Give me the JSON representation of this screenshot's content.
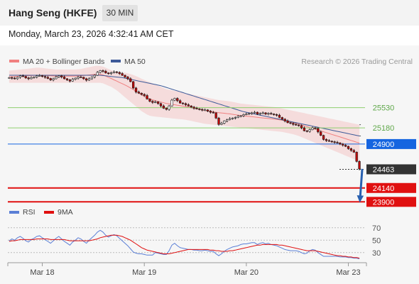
{
  "header": {
    "title": "Hang Seng (HKFE)",
    "timeframe": "30 MIN"
  },
  "datetime": "Monday, March 23, 2026 4:32:41 AM CET",
  "attribution": "Research © 2026 Trading Central",
  "colors": {
    "bollinger": "#f08080",
    "ma50": "#3d5a99",
    "support": "#e01010",
    "pivot": "#1565e0",
    "resistance": "#8fcf6f",
    "current": "#333333",
    "arrow": "#2860b0",
    "rsi": "#5b7fd6",
    "rsi_ma": "#e01010",
    "candle_up": "#ffffff",
    "candle_down": "#c00000"
  },
  "chart_data": [
    {
      "type": "candlestick",
      "legend": [
        "MA 20 + Bollinger Bands",
        "MA 50"
      ],
      "legend_position": "top-left",
      "x_ticks": [
        "Mar 18",
        "Mar 19",
        "Mar 20",
        "Mar 23"
      ],
      "ylim": [
        23830,
        26250
      ],
      "levels": [
        {
          "value": 25530,
          "label": "25530",
          "kind": "resistance"
        },
        {
          "value": 25180,
          "label": "25180",
          "kind": "resistance"
        },
        {
          "value": 24900,
          "label": "24900",
          "kind": "pivot"
        },
        {
          "value": 24463,
          "label": "24463",
          "kind": "current"
        },
        {
          "value": 24140,
          "label": "24140",
          "kind": "support"
        },
        {
          "value": 23900,
          "label": "23900",
          "kind": "support"
        }
      ],
      "close": [
        26050,
        26040,
        26030,
        26055,
        26080,
        26070,
        26045,
        26030,
        26050,
        26060,
        26080,
        26085,
        26070,
        26055,
        26035,
        26010,
        26030,
        26060,
        26080,
        26060,
        26030,
        26010,
        25990,
        26020,
        26040,
        26060,
        26055,
        26030,
        26005,
        26030,
        26060,
        26090,
        26140,
        26170,
        26160,
        26130,
        26120,
        26135,
        26150,
        26140,
        26120,
        26090,
        26060,
        26030,
        25980,
        25870,
        25800,
        25780,
        25760,
        25740,
        25680,
        25640,
        25620,
        25630,
        25600,
        25560,
        25520,
        25500,
        25560,
        25660,
        25690,
        25650,
        25610,
        25600,
        25580,
        25560,
        25540,
        25520,
        25510,
        25500,
        25490,
        25490,
        25470,
        25450,
        25440,
        25350,
        25240,
        25260,
        25300,
        25320,
        25340,
        25350,
        25360,
        25380,
        25390,
        25410,
        25420,
        25430,
        25440,
        25450,
        25420,
        25430,
        25440,
        25420,
        25430,
        25420,
        25410,
        25400,
        25360,
        25330,
        25300,
        25270,
        25260,
        25240,
        25230,
        25220,
        25180,
        25130,
        25120,
        25150,
        25180,
        25170,
        25110,
        25050,
        24980,
        24960,
        24950,
        24940,
        24930,
        24920,
        24900,
        24880,
        24860,
        24820,
        24790,
        24760,
        24600,
        24470
      ],
      "ma20_bb_upper": [
        26170,
        26175,
        26180,
        26185,
        26190,
        26195,
        26200,
        26205,
        26210,
        26215,
        26220,
        26220,
        26215,
        26210,
        26205,
        26200,
        26195,
        26190,
        26190,
        26190,
        26190,
        26190,
        26190,
        26190,
        26190,
        26195,
        26200,
        26210,
        26220,
        26230,
        26240,
        26250,
        26255,
        26250,
        26240,
        26220,
        26200,
        26180,
        26160,
        26150,
        26140,
        26140,
        26135,
        26125,
        26110,
        26095,
        26075,
        26055,
        26030,
        26010,
        25990,
        25970,
        25950,
        25930,
        25910,
        25890,
        25870,
        25850,
        25840,
        25830,
        25820,
        25810,
        25800,
        25790,
        25780,
        25770,
        25760,
        25750,
        25740,
        25730,
        25720,
        25710,
        25700,
        25690,
        25680,
        25670,
        25660,
        25655,
        25650,
        25645,
        25640,
        25630,
        25620,
        25610,
        25600,
        25595,
        25590,
        25585,
        25580,
        25575,
        25570,
        25565,
        25560,
        25555,
        25550,
        25545,
        25540,
        25535,
        25525,
        25515,
        25505,
        25495,
        25485,
        25475,
        25465,
        25455,
        25445,
        25435,
        25425,
        25415,
        25405,
        25395,
        25385,
        25375,
        25365,
        25355,
        25345,
        25335,
        25325,
        25315,
        25305,
        25295,
        25285,
        25275,
        25265,
        25255,
        25245,
        25235
      ],
      "ma20_bb_lower": [
        25960,
        25960,
        25960,
        25960,
        25960,
        25960,
        25960,
        25960,
        25960,
        25960,
        25960,
        25960,
        25960,
        25960,
        25960,
        25960,
        25960,
        25960,
        25960,
        25960,
        25960,
        25960,
        25960,
        25960,
        25960,
        25960,
        25960,
        25960,
        25960,
        25960,
        25960,
        25960,
        25960,
        25960,
        25950,
        25930,
        25910,
        25890,
        25860,
        25830,
        25790,
        25750,
        25710,
        25670,
        25630,
        25590,
        25550,
        25510,
        25470,
        25440,
        25410,
        25390,
        25380,
        25375,
        25370,
        25365,
        25360,
        25355,
        25350,
        25345,
        25340,
        25335,
        25330,
        25325,
        25320,
        25310,
        25300,
        25290,
        25280,
        25270,
        25260,
        25250,
        25245,
        25240,
        25235,
        25230,
        25225,
        25220,
        25215,
        25210,
        25205,
        25200,
        25195,
        25190,
        25185,
        25180,
        25175,
        25170,
        25165,
        25160,
        25155,
        25150,
        25145,
        25140,
        25135,
        25130,
        25125,
        25120,
        25115,
        25110,
        25100,
        25090,
        25080,
        25070,
        25055,
        25040,
        25020,
        25000,
        24980,
        24960,
        24940,
        24920,
        24900,
        24880,
        24860,
        24840,
        24820,
        24800,
        24780,
        24760,
        24740,
        24720,
        24700,
        24680,
        24660,
        24640,
        24620,
        24600
      ],
      "ma50": [
        26090,
        26090,
        26090,
        26090,
        26090,
        26090,
        26090,
        26090,
        26090,
        26090,
        26090,
        26090,
        26090,
        26090,
        26090,
        26090,
        26090,
        26090,
        26090,
        26090,
        26090,
        26090,
        26090,
        26090,
        26090,
        26090,
        26090,
        26090,
        26090,
        26090,
        26090,
        26090,
        26090,
        26090,
        26085,
        26080,
        26075,
        26070,
        26065,
        26060,
        26055,
        26050,
        26040,
        26030,
        26020,
        26010,
        26000,
        25990,
        25980,
        25970,
        25960,
        25950,
        25940,
        25930,
        25920,
        25910,
        25895,
        25880,
        25865,
        25850,
        25835,
        25820,
        25805,
        25790,
        25775,
        25760,
        25745,
        25730,
        25715,
        25700,
        25685,
        25670,
        25655,
        25640,
        25625,
        25610,
        25595,
        25580,
        25565,
        25550,
        25535,
        25520,
        25505,
        25490,
        25475,
        25460,
        25450,
        25440,
        25430,
        25420,
        25410,
        25400,
        25390,
        25380,
        25370,
        25360,
        25350,
        25340,
        25330,
        25320,
        25310,
        25300,
        25290,
        25280,
        25270,
        25260,
        25250,
        25240,
        25230,
        25220,
        25210,
        25200,
        25190,
        25180,
        25170,
        25160,
        25150,
        25140,
        25130,
        25120,
        25110,
        25100,
        25090,
        25080,
        25070,
        25060,
        25050,
        25040
      ]
    },
    {
      "type": "line",
      "legend": [
        "RSI",
        "9MA"
      ],
      "legend_position": "top-left",
      "ylim": [
        16,
        80
      ],
      "y_ticks": [
        70,
        50,
        30
      ],
      "rsi": [
        49,
        52,
        50,
        54,
        56,
        53,
        49,
        47,
        51,
        53,
        56,
        57,
        54,
        51,
        48,
        45,
        49,
        53,
        56,
        52,
        48,
        45,
        42,
        47,
        50,
        54,
        52,
        48,
        45,
        50,
        54,
        58,
        63,
        66,
        63,
        58,
        55,
        57,
        59,
        57,
        53,
        49,
        45,
        41,
        36,
        31,
        29,
        28,
        28,
        27,
        26,
        26,
        26,
        30,
        29,
        28,
        27,
        27,
        33,
        42,
        45,
        41,
        38,
        37,
        36,
        35,
        35,
        34,
        34,
        33,
        33,
        34,
        33,
        32,
        32,
        28,
        25,
        28,
        32,
        35,
        37,
        39,
        40,
        41,
        43,
        44,
        44,
        45,
        46,
        46,
        43,
        45,
        46,
        44,
        45,
        43,
        42,
        41,
        39,
        37,
        35,
        34,
        33,
        33,
        33,
        32,
        30,
        28,
        29,
        33,
        35,
        34,
        30,
        27,
        24,
        24,
        24,
        24,
        24,
        24,
        23,
        23,
        23,
        22,
        22,
        21,
        21,
        20
      ],
      "rsi_ma": [
        48,
        49,
        49,
        50,
        51,
        51,
        51,
        51,
        51,
        51,
        52,
        52,
        52,
        52,
        52,
        51,
        51,
        51,
        51,
        51,
        51,
        50,
        49,
        49,
        49,
        49,
        49,
        49,
        49,
        49,
        50,
        51,
        52,
        54,
        55,
        56,
        57,
        58,
        58,
        58,
        57,
        56,
        54,
        52,
        50,
        47,
        44,
        41,
        38,
        36,
        34,
        33,
        32,
        31,
        30,
        29,
        28,
        28,
        28,
        29,
        30,
        31,
        32,
        33,
        34,
        35,
        35,
        35,
        35,
        35,
        35,
        35,
        35,
        34,
        34,
        33,
        33,
        32,
        32,
        32,
        33,
        33,
        34,
        35,
        36,
        37,
        38,
        39,
        40,
        41,
        42,
        42,
        43,
        43,
        43,
        43,
        43,
        43,
        42,
        42,
        41,
        40,
        39,
        38,
        37,
        36,
        35,
        34,
        33,
        33,
        33,
        33,
        32,
        31,
        30,
        29,
        28,
        27,
        26,
        25,
        25,
        24,
        24,
        23,
        23,
        22,
        22,
        21
      ]
    }
  ]
}
